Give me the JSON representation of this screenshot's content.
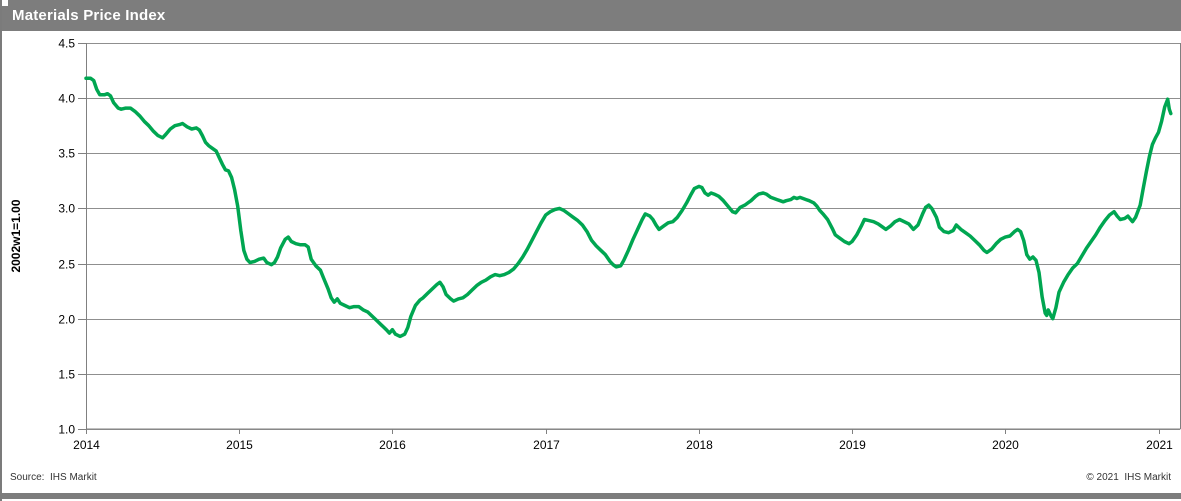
{
  "header": {
    "title": "Materials Price Index",
    "bg_color": "#7d7d7d",
    "text_color": "#ffffff"
  },
  "footer": {
    "source": "Source:  IHS Markit",
    "copyright": "© 2021  IHS Markit",
    "bar_color": "#7d7d7d"
  },
  "chart_data": {
    "type": "line",
    "title": "Materials Price Index",
    "xlabel": "",
    "ylabel": "2002w1=1.00",
    "xlim": [
      2014,
      2021.14
    ],
    "ylim": [
      1.0,
      4.5
    ],
    "x_ticks": [
      2014,
      2015,
      2016,
      2017,
      2018,
      2019,
      2020,
      2021
    ],
    "x_tick_labels": [
      "2014",
      "2015",
      "2016",
      "2017",
      "2018",
      "2019",
      "2020",
      "2021"
    ],
    "y_ticks": [
      1.0,
      1.5,
      2.0,
      2.5,
      3.0,
      3.5,
      4.0,
      4.5
    ],
    "y_tick_labels": [
      "1.0",
      "1.5",
      "2.0",
      "2.5",
      "3.0",
      "3.5",
      "4.0",
      "4.5"
    ],
    "grid": "horizontal",
    "legend": "none",
    "line_color": "#00a651",
    "grid_color": "#8f8f8f",
    "axis_color": "#808080",
    "tick_label_color": "#000000",
    "series": [
      {
        "name": "Materials Price Index (2002w1=1.00)",
        "points": [
          [
            2014.0,
            4.18
          ],
          [
            2014.03,
            4.18
          ],
          [
            2014.05,
            4.16
          ],
          [
            2014.07,
            4.08
          ],
          [
            2014.09,
            4.03
          ],
          [
            2014.12,
            4.03
          ],
          [
            2014.14,
            4.04
          ],
          [
            2014.16,
            4.02
          ],
          [
            2014.18,
            3.96
          ],
          [
            2014.21,
            3.91
          ],
          [
            2014.23,
            3.9
          ],
          [
            2014.26,
            3.91
          ],
          [
            2014.29,
            3.91
          ],
          [
            2014.32,
            3.88
          ],
          [
            2014.35,
            3.84
          ],
          [
            2014.38,
            3.79
          ],
          [
            2014.41,
            3.75
          ],
          [
            2014.44,
            3.7
          ],
          [
            2014.47,
            3.66
          ],
          [
            2014.5,
            3.64
          ],
          [
            2014.52,
            3.67
          ],
          [
            2014.55,
            3.72
          ],
          [
            2014.58,
            3.75
          ],
          [
            2014.61,
            3.76
          ],
          [
            2014.63,
            3.77
          ],
          [
            2014.66,
            3.74
          ],
          [
            2014.69,
            3.72
          ],
          [
            2014.72,
            3.73
          ],
          [
            2014.74,
            3.71
          ],
          [
            2014.76,
            3.66
          ],
          [
            2014.78,
            3.6
          ],
          [
            2014.8,
            3.57
          ],
          [
            2014.82,
            3.55
          ],
          [
            2014.85,
            3.52
          ],
          [
            2014.87,
            3.46
          ],
          [
            2014.89,
            3.4
          ],
          [
            2014.91,
            3.35
          ],
          [
            2014.93,
            3.34
          ],
          [
            2014.95,
            3.28
          ],
          [
            2014.97,
            3.17
          ],
          [
            2014.99,
            3.02
          ],
          [
            2015.01,
            2.8
          ],
          [
            2015.03,
            2.62
          ],
          [
            2015.05,
            2.54
          ],
          [
            2015.07,
            2.51
          ],
          [
            2015.1,
            2.52
          ],
          [
            2015.13,
            2.54
          ],
          [
            2015.16,
            2.55
          ],
          [
            2015.18,
            2.51
          ],
          [
            2015.21,
            2.49
          ],
          [
            2015.23,
            2.51
          ],
          [
            2015.25,
            2.56
          ],
          [
            2015.27,
            2.64
          ],
          [
            2015.3,
            2.72
          ],
          [
            2015.32,
            2.74
          ],
          [
            2015.34,
            2.7
          ],
          [
            2015.37,
            2.68
          ],
          [
            2015.4,
            2.67
          ],
          [
            2015.43,
            2.67
          ],
          [
            2015.45,
            2.65
          ],
          [
            2015.47,
            2.54
          ],
          [
            2015.5,
            2.48
          ],
          [
            2015.53,
            2.44
          ],
          [
            2015.55,
            2.37
          ],
          [
            2015.58,
            2.27
          ],
          [
            2015.6,
            2.19
          ],
          [
            2015.62,
            2.15
          ],
          [
            2015.64,
            2.18
          ],
          [
            2015.66,
            2.14
          ],
          [
            2015.69,
            2.12
          ],
          [
            2015.72,
            2.1
          ],
          [
            2015.75,
            2.11
          ],
          [
            2015.78,
            2.11
          ],
          [
            2015.81,
            2.08
          ],
          [
            2015.84,
            2.06
          ],
          [
            2015.87,
            2.02
          ],
          [
            2015.9,
            1.98
          ],
          [
            2015.93,
            1.94
          ],
          [
            2015.96,
            1.9
          ],
          [
            2015.98,
            1.87
          ],
          [
            2016.0,
            1.9
          ],
          [
            2016.02,
            1.86
          ],
          [
            2016.05,
            1.84
          ],
          [
            2016.08,
            1.86
          ],
          [
            2016.1,
            1.92
          ],
          [
            2016.12,
            2.02
          ],
          [
            2016.15,
            2.12
          ],
          [
            2016.18,
            2.17
          ],
          [
            2016.2,
            2.19
          ],
          [
            2016.23,
            2.23
          ],
          [
            2016.26,
            2.27
          ],
          [
            2016.29,
            2.31
          ],
          [
            2016.31,
            2.33
          ],
          [
            2016.33,
            2.29
          ],
          [
            2016.35,
            2.22
          ],
          [
            2016.38,
            2.18
          ],
          [
            2016.4,
            2.16
          ],
          [
            2016.43,
            2.18
          ],
          [
            2016.46,
            2.19
          ],
          [
            2016.49,
            2.22
          ],
          [
            2016.52,
            2.26
          ],
          [
            2016.55,
            2.3
          ],
          [
            2016.58,
            2.33
          ],
          [
            2016.61,
            2.35
          ],
          [
            2016.64,
            2.38
          ],
          [
            2016.67,
            2.4
          ],
          [
            2016.7,
            2.39
          ],
          [
            2016.73,
            2.4
          ],
          [
            2016.76,
            2.42
          ],
          [
            2016.79,
            2.45
          ],
          [
            2016.82,
            2.5
          ],
          [
            2016.85,
            2.56
          ],
          [
            2016.88,
            2.63
          ],
          [
            2016.91,
            2.71
          ],
          [
            2016.94,
            2.79
          ],
          [
            2016.97,
            2.87
          ],
          [
            2017.0,
            2.94
          ],
          [
            2017.03,
            2.97
          ],
          [
            2017.06,
            2.99
          ],
          [
            2017.09,
            3.0
          ],
          [
            2017.12,
            2.98
          ],
          [
            2017.15,
            2.95
          ],
          [
            2017.18,
            2.92
          ],
          [
            2017.21,
            2.89
          ],
          [
            2017.24,
            2.85
          ],
          [
            2017.27,
            2.79
          ],
          [
            2017.3,
            2.71
          ],
          [
            2017.33,
            2.66
          ],
          [
            2017.36,
            2.62
          ],
          [
            2017.39,
            2.58
          ],
          [
            2017.42,
            2.52
          ],
          [
            2017.44,
            2.49
          ],
          [
            2017.46,
            2.47
          ],
          [
            2017.49,
            2.48
          ],
          [
            2017.51,
            2.53
          ],
          [
            2017.54,
            2.62
          ],
          [
            2017.57,
            2.72
          ],
          [
            2017.6,
            2.81
          ],
          [
            2017.63,
            2.9
          ],
          [
            2017.65,
            2.95
          ],
          [
            2017.68,
            2.93
          ],
          [
            2017.7,
            2.9
          ],
          [
            2017.72,
            2.85
          ],
          [
            2017.74,
            2.81
          ],
          [
            2017.77,
            2.84
          ],
          [
            2017.8,
            2.87
          ],
          [
            2017.83,
            2.88
          ],
          [
            2017.86,
            2.92
          ],
          [
            2017.89,
            2.98
          ],
          [
            2017.92,
            3.05
          ],
          [
            2017.95,
            3.13
          ],
          [
            2017.97,
            3.18
          ],
          [
            2018.0,
            3.2
          ],
          [
            2018.02,
            3.19
          ],
          [
            2018.04,
            3.14
          ],
          [
            2018.06,
            3.12
          ],
          [
            2018.08,
            3.14
          ],
          [
            2018.1,
            3.13
          ],
          [
            2018.13,
            3.11
          ],
          [
            2018.16,
            3.07
          ],
          [
            2018.19,
            3.02
          ],
          [
            2018.22,
            2.97
          ],
          [
            2018.24,
            2.96
          ],
          [
            2018.27,
            3.01
          ],
          [
            2018.3,
            3.03
          ],
          [
            2018.32,
            3.05
          ],
          [
            2018.34,
            3.07
          ],
          [
            2018.37,
            3.11
          ],
          [
            2018.39,
            3.13
          ],
          [
            2018.42,
            3.14
          ],
          [
            2018.44,
            3.13
          ],
          [
            2018.47,
            3.1
          ],
          [
            2018.49,
            3.09
          ],
          [
            2018.51,
            3.08
          ],
          [
            2018.53,
            3.07
          ],
          [
            2018.55,
            3.06
          ],
          [
            2018.57,
            3.07
          ],
          [
            2018.6,
            3.08
          ],
          [
            2018.62,
            3.1
          ],
          [
            2018.64,
            3.09
          ],
          [
            2018.66,
            3.1
          ],
          [
            2018.68,
            3.09
          ],
          [
            2018.7,
            3.08
          ],
          [
            2018.72,
            3.07
          ],
          [
            2018.75,
            3.05
          ],
          [
            2018.77,
            3.02
          ],
          [
            2018.79,
            2.98
          ],
          [
            2018.81,
            2.95
          ],
          [
            2018.84,
            2.9
          ],
          [
            2018.87,
            2.82
          ],
          [
            2018.89,
            2.76
          ],
          [
            2018.92,
            2.73
          ],
          [
            2018.95,
            2.7
          ],
          [
            2018.98,
            2.68
          ],
          [
            2019.0,
            2.7
          ],
          [
            2019.03,
            2.76
          ],
          [
            2019.06,
            2.84
          ],
          [
            2019.08,
            2.9
          ],
          [
            2019.11,
            2.89
          ],
          [
            2019.14,
            2.88
          ],
          [
            2019.17,
            2.86
          ],
          [
            2019.2,
            2.83
          ],
          [
            2019.22,
            2.81
          ],
          [
            2019.25,
            2.84
          ],
          [
            2019.28,
            2.88
          ],
          [
            2019.31,
            2.9
          ],
          [
            2019.34,
            2.88
          ],
          [
            2019.37,
            2.86
          ],
          [
            2019.4,
            2.81
          ],
          [
            2019.43,
            2.85
          ],
          [
            2019.46,
            2.95
          ],
          [
            2019.48,
            3.01
          ],
          [
            2019.5,
            3.03
          ],
          [
            2019.52,
            3.0
          ],
          [
            2019.55,
            2.92
          ],
          [
            2019.57,
            2.83
          ],
          [
            2019.6,
            2.79
          ],
          [
            2019.63,
            2.78
          ],
          [
            2019.66,
            2.8
          ],
          [
            2019.68,
            2.85
          ],
          [
            2019.71,
            2.81
          ],
          [
            2019.74,
            2.78
          ],
          [
            2019.77,
            2.75
          ],
          [
            2019.8,
            2.71
          ],
          [
            2019.83,
            2.67
          ],
          [
            2019.86,
            2.62
          ],
          [
            2019.88,
            2.6
          ],
          [
            2019.91,
            2.63
          ],
          [
            2019.94,
            2.68
          ],
          [
            2019.97,
            2.72
          ],
          [
            2020.0,
            2.74
          ],
          [
            2020.03,
            2.75
          ],
          [
            2020.06,
            2.79
          ],
          [
            2020.08,
            2.81
          ],
          [
            2020.1,
            2.79
          ],
          [
            2020.12,
            2.71
          ],
          [
            2020.14,
            2.58
          ],
          [
            2020.16,
            2.54
          ],
          [
            2020.18,
            2.56
          ],
          [
            2020.2,
            2.53
          ],
          [
            2020.22,
            2.42
          ],
          [
            2020.24,
            2.2
          ],
          [
            2020.26,
            2.05
          ],
          [
            2020.27,
            2.03
          ],
          [
            2020.28,
            2.08
          ],
          [
            2020.3,
            2.02
          ],
          [
            2020.31,
            2.0
          ],
          [
            2020.33,
            2.1
          ],
          [
            2020.35,
            2.24
          ],
          [
            2020.38,
            2.33
          ],
          [
            2020.41,
            2.4
          ],
          [
            2020.44,
            2.46
          ],
          [
            2020.47,
            2.5
          ],
          [
            2020.5,
            2.57
          ],
          [
            2020.53,
            2.64
          ],
          [
            2020.56,
            2.7
          ],
          [
            2020.59,
            2.76
          ],
          [
            2020.62,
            2.83
          ],
          [
            2020.65,
            2.89
          ],
          [
            2020.68,
            2.94
          ],
          [
            2020.71,
            2.97
          ],
          [
            2020.73,
            2.93
          ],
          [
            2020.75,
            2.9
          ],
          [
            2020.78,
            2.91
          ],
          [
            2020.8,
            2.93
          ],
          [
            2020.83,
            2.88
          ],
          [
            2020.85,
            2.92
          ],
          [
            2020.88,
            3.03
          ],
          [
            2020.9,
            3.18
          ],
          [
            2020.92,
            3.33
          ],
          [
            2020.94,
            3.47
          ],
          [
            2020.96,
            3.58
          ],
          [
            2020.98,
            3.64
          ],
          [
            2021.0,
            3.69
          ],
          [
            2021.02,
            3.79
          ],
          [
            2021.04,
            3.92
          ],
          [
            2021.06,
            3.99
          ],
          [
            2021.07,
            3.9
          ],
          [
            2021.08,
            3.86
          ]
        ]
      }
    ]
  }
}
